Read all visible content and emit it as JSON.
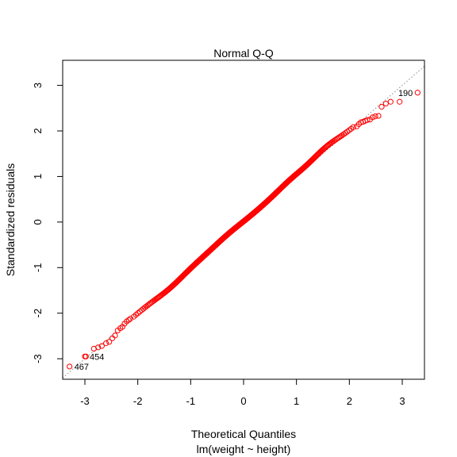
{
  "chart_data": {
    "type": "scatter",
    "title": "Normal Q-Q",
    "xlabel": "Theoretical Quantiles",
    "xlabel2": "lm(weight ~ height)",
    "ylabel": "Standardized residuals",
    "xlim": [
      -3.42,
      3.42
    ],
    "ylim": [
      -3.45,
      3.55
    ],
    "xticks": [
      -3,
      -2,
      -1,
      0,
      1,
      2,
      3
    ],
    "yticks": [
      -3,
      -2,
      -1,
      0,
      1,
      2,
      3
    ],
    "xtick_labels": [
      "-3",
      "-2",
      "-1",
      "0",
      "1",
      "2",
      "3"
    ],
    "ytick_labels": [
      "-3",
      "-2",
      "-1",
      "0",
      "1",
      "2",
      "3"
    ],
    "grid": false,
    "reference_line": {
      "slope": 1,
      "intercept": 0,
      "style": "dotted",
      "color": "#8c8c8c"
    },
    "point_color": "#ff0000",
    "labeled_points": [
      {
        "label": "190",
        "x": 3.29,
        "y": 2.84
      },
      {
        "label": "454",
        "x": -3.0,
        "y": -2.95
      },
      {
        "label": "467",
        "x": -3.29,
        "y": -3.17
      }
    ],
    "n_points": 500,
    "main_body": {
      "range": [
        -2.1,
        2.1
      ],
      "wobbles": [
        {
          "center": -1.4,
          "offset": -0.06
        },
        {
          "center": -0.3,
          "offset": 0.03
        },
        {
          "center": 0.9,
          "offset": 0.05
        },
        {
          "center": 1.55,
          "offset": 0.09
        }
      ]
    },
    "tail_points": [
      {
        "x": -2.98,
        "y": -2.95
      },
      {
        "x": -2.83,
        "y": -2.78
      },
      {
        "x": -2.75,
        "y": -2.75
      },
      {
        "x": -2.68,
        "y": -2.72
      },
      {
        "x": -2.6,
        "y": -2.66
      },
      {
        "x": -2.54,
        "y": -2.63
      },
      {
        "x": -2.48,
        "y": -2.55
      },
      {
        "x": -2.43,
        "y": -2.49
      },
      {
        "x": -2.38,
        "y": -2.38
      },
      {
        "x": -2.33,
        "y": -2.33
      },
      {
        "x": -2.29,
        "y": -2.3
      },
      {
        "x": -2.25,
        "y": -2.23
      },
      {
        "x": -2.21,
        "y": -2.18
      },
      {
        "x": -2.17,
        "y": -2.15
      },
      {
        "x": -2.14,
        "y": -2.12
      },
      {
        "x": 2.14,
        "y": 2.1
      },
      {
        "x": 2.18,
        "y": 2.15
      },
      {
        "x": 2.22,
        "y": 2.19
      },
      {
        "x": 2.26,
        "y": 2.2
      },
      {
        "x": 2.3,
        "y": 2.22
      },
      {
        "x": 2.34,
        "y": 2.24
      },
      {
        "x": 2.39,
        "y": 2.25
      },
      {
        "x": 2.44,
        "y": 2.3
      },
      {
        "x": 2.49,
        "y": 2.32
      },
      {
        "x": 2.55,
        "y": 2.33
      },
      {
        "x": 2.61,
        "y": 2.53
      },
      {
        "x": 2.69,
        "y": 2.6
      },
      {
        "x": 2.78,
        "y": 2.64
      },
      {
        "x": 2.95,
        "y": 2.64
      }
    ]
  }
}
